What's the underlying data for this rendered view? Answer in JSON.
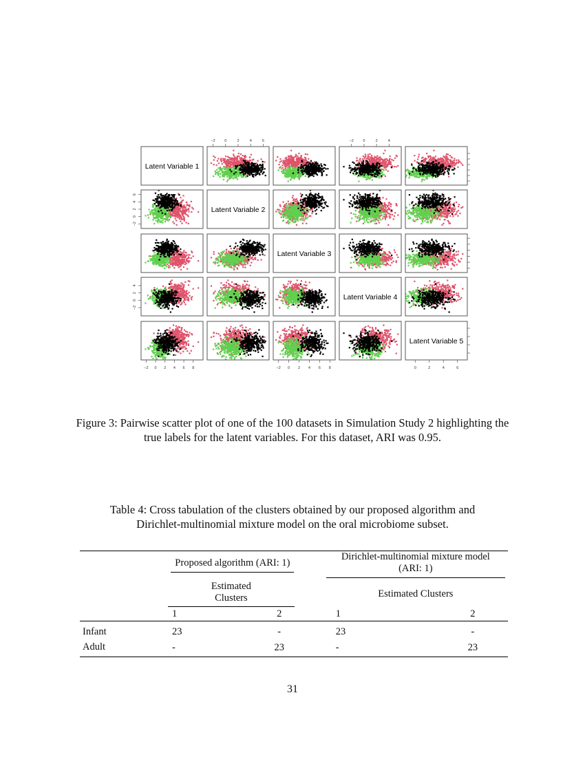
{
  "chart_data": {
    "type": "scatter",
    "kind": "pairwise scatter matrix",
    "variables": [
      "Latent Variable 1",
      "Latent Variable 2",
      "Latent Variable 3",
      "Latent Variable 4",
      "Latent Variable 5"
    ],
    "ticks": {
      "Latent Variable 1": [
        -2,
        0,
        2,
        4,
        6,
        8
      ],
      "Latent Variable 2": [
        -2,
        0,
        2,
        4,
        6
      ],
      "Latent Variable 3": [
        -2,
        0,
        2,
        4,
        6,
        8
      ],
      "Latent Variable 4": [
        -2,
        0,
        2,
        4
      ],
      "Latent Variable 5": [
        0,
        2,
        4,
        6
      ]
    },
    "ranges": {
      "Latent Variable 1": [
        -2.5,
        9.5
      ],
      "Latent Variable 2": [
        -2.5,
        6.5
      ],
      "Latent Variable 3": [
        -2.5,
        8.5
      ],
      "Latent Variable 4": [
        -3.5,
        5.5
      ],
      "Latent Variable 5": [
        -1,
        7
      ]
    },
    "groups": [
      {
        "color": "#df536b",
        "means": [
          4.5,
          1.8,
          1.2,
          2.0,
          3.5
        ],
        "sd": 1.4
      },
      {
        "color": "#61d04f",
        "means": [
          1.0,
          1.0,
          1.0,
          0.9,
          1.0
        ],
        "sd": 1.0
      },
      {
        "color": "#000000",
        "means": [
          2.3,
          4.0,
          4.5,
          0.5,
          2.5
        ],
        "sd": 1.1
      }
    ],
    "points_per_group": 300
  },
  "figure_caption": "Figure 3: Pairwise scatter plot of one of the 100 datasets in Simulation Study 2 highlighting the true labels for the latent variables. For this dataset, ARI was 0.95.",
  "table_caption_1": "Table 4: Cross tabulation of the clusters obtained by our proposed algorithm and",
  "table_caption_2": "Dirichlet-multinomial mixture model on the oral microbiome subset.",
  "table": {
    "group1": "Proposed algorithm (ARI: 1)",
    "group2": "Dirichlet-multinomial mixture model (ARI: 1)",
    "sub": "Estimated Clusters",
    "cols": [
      "1",
      "2"
    ],
    "rows": [
      {
        "label": "Infant",
        "values": [
          "23",
          "-",
          "23",
          "-"
        ]
      },
      {
        "label": "Adult",
        "values": [
          "-",
          "23",
          "-",
          "23"
        ]
      }
    ]
  },
  "page_number": "31"
}
